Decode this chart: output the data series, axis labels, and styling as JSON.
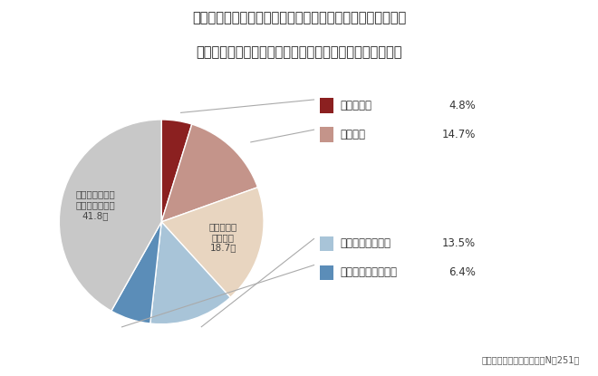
{
  "title_line1": "あなたの会社では、「社員紹介制度」を採用していますか。",
  "title_line2": "採用されている場合は、運用は順調に機能していますか。",
  "slices": [
    {
      "label": "とても順調",
      "value": 4.8,
      "color": "#8B2020"
    },
    {
      "label": "やや順調",
      "value": 14.7,
      "color": "#C4948A"
    },
    {
      "label": "どちらともいえない",
      "value": 18.7,
      "color": "#E8D5C0"
    },
    {
      "label": "あまり順調でない",
      "value": 13.5,
      "color": "#A8C4D8"
    },
    {
      "label": "まったく順調でない",
      "value": 6.4,
      "color": "#5B8DB8"
    },
    {
      "label": "社員紹介制度を採用していない",
      "value": 41.8,
      "color": "#C8C8C8"
    }
  ],
  "legend_upper": [
    {
      "label": "とても順調",
      "value": "4.8%",
      "color": "#8B2020"
    },
    {
      "label": "やや順調",
      "value": "14.7%",
      "color": "#C4948A"
    }
  ],
  "legend_lower": [
    {
      "label": "あまり順調でない",
      "value": "13.5%",
      "color": "#A8C4D8"
    },
    {
      "label": "まったく順調でない",
      "value": "6.4%",
      "color": "#5B8DB8"
    }
  ],
  "source_text": "マンパワーグループ調べ（N＝251）",
  "background_color": "#FFFFFF"
}
